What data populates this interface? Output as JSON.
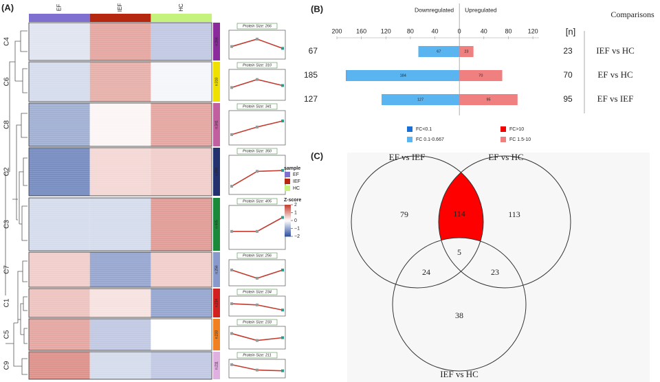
{
  "chart_data": [
    {
      "type": "heatmap",
      "panel": "(A)",
      "samples": [
        {
          "name": "EF",
          "color": "#7f6fcf"
        },
        {
          "name": "IEF",
          "color": "#b5280f"
        },
        {
          "name": "HC",
          "color": "#c5f27c"
        }
      ],
      "clusters": [
        {
          "name": "C4",
          "color": "#8b2a9b",
          "size_label": "n:266",
          "protein_size_label": "Protein Size: 266",
          "values": [
            -0.3,
            0.9,
            -0.6
          ]
        },
        {
          "name": "C6",
          "color": "#f0e000",
          "size_label": "n:310",
          "protein_size_label": "Protein Size: 310",
          "values": [
            -0.4,
            0.8,
            -0.1
          ]
        },
        {
          "name": "C8",
          "color": "#c0609f",
          "size_label": "n:341",
          "protein_size_label": "Protein Size: 341",
          "values": [
            -0.9,
            0.1,
            0.9
          ]
        },
        {
          "name": "C2",
          "color": "#23316e",
          "size_label": "n:350",
          "protein_size_label": "Protein Size: 350",
          "values": [
            -1.3,
            0.4,
            0.5
          ]
        },
        {
          "name": "C3",
          "color": "#1a8a3a",
          "size_label": "n:405",
          "protein_size_label": "Protein Size: 405",
          "values": [
            -0.4,
            -0.4,
            1.0
          ]
        },
        {
          "name": "C7",
          "color": "#8899cc",
          "size_label": "n:256",
          "protein_size_label": "Protein Size: 256",
          "values": [
            0.5,
            -1.0,
            0.5
          ]
        },
        {
          "name": "C1",
          "color": "#d02020",
          "size_label": "n:234",
          "protein_size_label": "Protein Size: 234",
          "values": [
            0.6,
            0.3,
            -1.0
          ]
        },
        {
          "name": "C5",
          "color": "#f08020",
          "size_label": "n:233",
          "protein_size_label": "Protein Size: 233",
          "values": [
            0.9,
            -0.6,
            0.0
          ]
        },
        {
          "name": "C9",
          "color": "#e0b0e0",
          "size_label": "n:211",
          "protein_size_label": "Protein Size: 211",
          "values": [
            1.1,
            -0.4,
            -0.6
          ]
        }
      ],
      "sample_legend_title": "sample",
      "zscore": {
        "title": "Z-score",
        "lim": [
          -2,
          2
        ],
        "ticks": [
          2,
          1,
          0,
          {
            "value": -1,
            "label": "−1"
          },
          {
            "value": -2,
            "label": "−2"
          }
        ]
      }
    },
    {
      "type": "bar",
      "panel": "(B)",
      "orientation": "horizontal",
      "down_label": "Downregulated",
      "up_label": "Upregulated",
      "n_header": "[n]",
      "comparisons_header": "Comparisons",
      "categories": [
        "IEF vs HC",
        "EF vs HC",
        "EF vs IEF"
      ],
      "totals_down": [
        67,
        185,
        127
      ],
      "totals_up": [
        23,
        70,
        95
      ],
      "xlim": [
        -200,
        130
      ],
      "xticks": [
        {
          "value": -200,
          "label": "200"
        },
        {
          "value": -160,
          "label": "160"
        },
        {
          "value": -120,
          "label": "120"
        },
        {
          "value": -80,
          "label": "80"
        },
        {
          "value": -40,
          "label": "40"
        },
        0,
        40,
        80,
        120
      ],
      "series": [
        {
          "name": "FC<0.1",
          "color": "#1a6fd6",
          "values": [
            0,
            -1,
            0
          ]
        },
        {
          "name": "FC 0.1-0.667",
          "color": "#5ab4f0",
          "values": [
            -67,
            -184,
            -127
          ],
          "value_labels": [
            "67",
            "184",
            "127"
          ]
        },
        {
          "name": "FC>10",
          "color": "#f00000",
          "values": [
            0,
            0,
            0
          ]
        },
        {
          "name": "FC 1.5-10",
          "color": "#f08080",
          "values": [
            23,
            70,
            95
          ],
          "value_labels": [
            "23",
            "70",
            "95"
          ]
        }
      ]
    },
    {
      "type": "venn",
      "panel": "(C)",
      "sets": [
        "EF vs IEF",
        "EF vs HC",
        "IEF vs HC"
      ],
      "values": [
        79,
        114,
        113,
        24,
        5,
        23,
        38
      ]
    }
  ]
}
